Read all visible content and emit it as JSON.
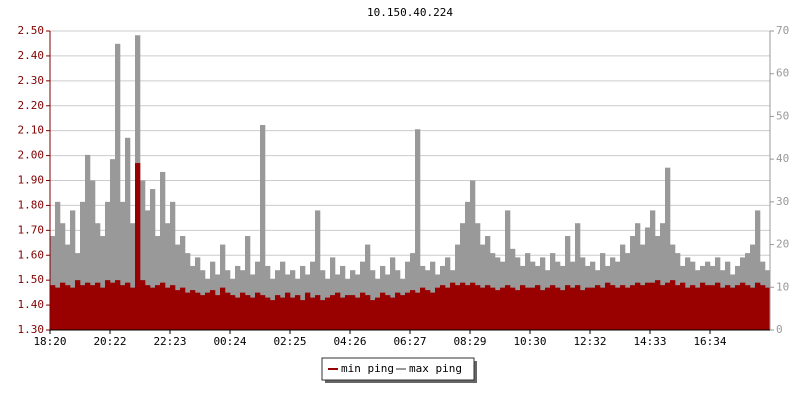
{
  "chart_data": {
    "type": "bar",
    "title": "10.150.40.224",
    "categories": [
      "18:20",
      null,
      null,
      null,
      null,
      null,
      null,
      null,
      null,
      null,
      null,
      null,
      "20:22",
      null,
      null,
      null,
      null,
      null,
      null,
      null,
      null,
      null,
      null,
      null,
      "22:23",
      null,
      null,
      null,
      null,
      null,
      null,
      null,
      null,
      null,
      null,
      null,
      "00:24",
      null,
      null,
      null,
      null,
      null,
      null,
      null,
      null,
      null,
      null,
      null,
      "02:25",
      null,
      null,
      null,
      null,
      null,
      null,
      null,
      null,
      null,
      null,
      null,
      "04:26",
      null,
      null,
      null,
      null,
      null,
      null,
      null,
      null,
      null,
      null,
      null,
      "06:27",
      null,
      null,
      null,
      null,
      null,
      null,
      null,
      null,
      null,
      null,
      null,
      "08:29",
      null,
      null,
      null,
      null,
      null,
      null,
      null,
      null,
      null,
      null,
      null,
      "10:30",
      null,
      null,
      null,
      null,
      null,
      null,
      null,
      null,
      null,
      null,
      null,
      "12:32",
      null,
      null,
      null,
      null,
      null,
      null,
      null,
      null,
      null,
      null,
      null,
      "14:33",
      null,
      null,
      null,
      null,
      null,
      null,
      null,
      null,
      null,
      null,
      null,
      "16:34",
      null,
      null,
      null,
      null,
      null,
      null,
      null,
      null,
      null,
      null,
      null
    ],
    "series": [
      {
        "name": "min ping",
        "color": "#990000",
        "axis": "y",
        "values": [
          1.48,
          1.47,
          1.49,
          1.48,
          1.47,
          1.5,
          1.48,
          1.49,
          1.48,
          1.49,
          1.47,
          1.5,
          1.49,
          1.5,
          1.48,
          1.49,
          1.47,
          1.97,
          1.5,
          1.48,
          1.47,
          1.48,
          1.49,
          1.47,
          1.48,
          1.46,
          1.47,
          1.45,
          1.46,
          1.45,
          1.44,
          1.45,
          1.46,
          1.44,
          1.47,
          1.45,
          1.44,
          1.43,
          1.45,
          1.44,
          1.43,
          1.45,
          1.44,
          1.43,
          1.42,
          1.44,
          1.43,
          1.45,
          1.43,
          1.44,
          1.42,
          1.45,
          1.43,
          1.44,
          1.42,
          1.43,
          1.44,
          1.45,
          1.43,
          1.44,
          1.44,
          1.43,
          1.45,
          1.44,
          1.42,
          1.43,
          1.45,
          1.44,
          1.43,
          1.45,
          1.44,
          1.45,
          1.46,
          1.45,
          1.47,
          1.46,
          1.45,
          1.47,
          1.48,
          1.47,
          1.49,
          1.48,
          1.49,
          1.48,
          1.49,
          1.48,
          1.47,
          1.48,
          1.47,
          1.46,
          1.47,
          1.48,
          1.47,
          1.46,
          1.48,
          1.47,
          1.47,
          1.48,
          1.46,
          1.47,
          1.48,
          1.47,
          1.46,
          1.48,
          1.47,
          1.48,
          1.46,
          1.47,
          1.47,
          1.48,
          1.47,
          1.49,
          1.48,
          1.47,
          1.48,
          1.47,
          1.48,
          1.49,
          1.48,
          1.49,
          1.49,
          1.5,
          1.48,
          1.49,
          1.5,
          1.48,
          1.49,
          1.47,
          1.48,
          1.47,
          1.49,
          1.48,
          1.48,
          1.49,
          1.47,
          1.48,
          1.47,
          1.48,
          1.49,
          1.48,
          1.47,
          1.49,
          1.48,
          1.47
        ]
      },
      {
        "name": "max ping",
        "color": "#999999",
        "axis": "y2",
        "values": [
          22,
          30,
          25,
          20,
          28,
          18,
          30,
          41,
          35,
          25,
          22,
          30,
          40,
          67,
          30,
          45,
          25,
          69,
          35,
          28,
          33,
          22,
          37,
          25,
          30,
          20,
          22,
          18,
          15,
          17,
          14,
          12,
          16,
          13,
          20,
          14,
          12,
          15,
          14,
          22,
          13,
          16,
          48,
          15,
          12,
          14,
          16,
          13,
          14,
          12,
          15,
          13,
          16,
          28,
          14,
          12,
          17,
          13,
          15,
          12,
          14,
          13,
          16,
          20,
          14,
          12,
          15,
          13,
          17,
          14,
          12,
          16,
          18,
          47,
          15,
          14,
          16,
          13,
          15,
          17,
          14,
          20,
          25,
          30,
          35,
          25,
          20,
          22,
          18,
          17,
          16,
          28,
          19,
          17,
          15,
          18,
          16,
          15,
          17,
          14,
          18,
          16,
          15,
          22,
          16,
          25,
          17,
          15,
          16,
          14,
          18,
          15,
          17,
          16,
          20,
          18,
          22,
          25,
          20,
          24,
          28,
          22,
          25,
          38,
          20,
          18,
          15,
          17,
          16,
          14,
          15,
          16,
          15,
          17,
          14,
          16,
          13,
          15,
          17,
          18,
          20,
          28,
          16,
          14
        ]
      }
    ],
    "ylim": [
      1.3,
      2.5
    ],
    "yticks": [
      {
        "value": 1.3,
        "label": "1.30"
      },
      {
        "value": 1.4,
        "label": "1.40"
      },
      {
        "value": 1.5,
        "label": "1.50"
      },
      {
        "value": 1.6,
        "label": "1.60"
      },
      {
        "value": 1.7,
        "label": "1.70"
      },
      {
        "value": 1.8,
        "label": "1.80"
      },
      {
        "value": 1.9,
        "label": "1.90"
      },
      {
        "value": 2.0,
        "label": "2.00"
      },
      {
        "value": 2.1,
        "label": "2.10"
      },
      {
        "value": 2.2,
        "label": "2.20"
      },
      {
        "value": 2.3,
        "label": "2.30"
      },
      {
        "value": 2.4,
        "label": "2.40"
      },
      {
        "value": 2.5,
        "label": "2.50"
      }
    ],
    "y2lim": [
      0,
      70
    ],
    "y2ticks": [
      0,
      10,
      20,
      30,
      40,
      50,
      60,
      70
    ],
    "grid": true
  }
}
